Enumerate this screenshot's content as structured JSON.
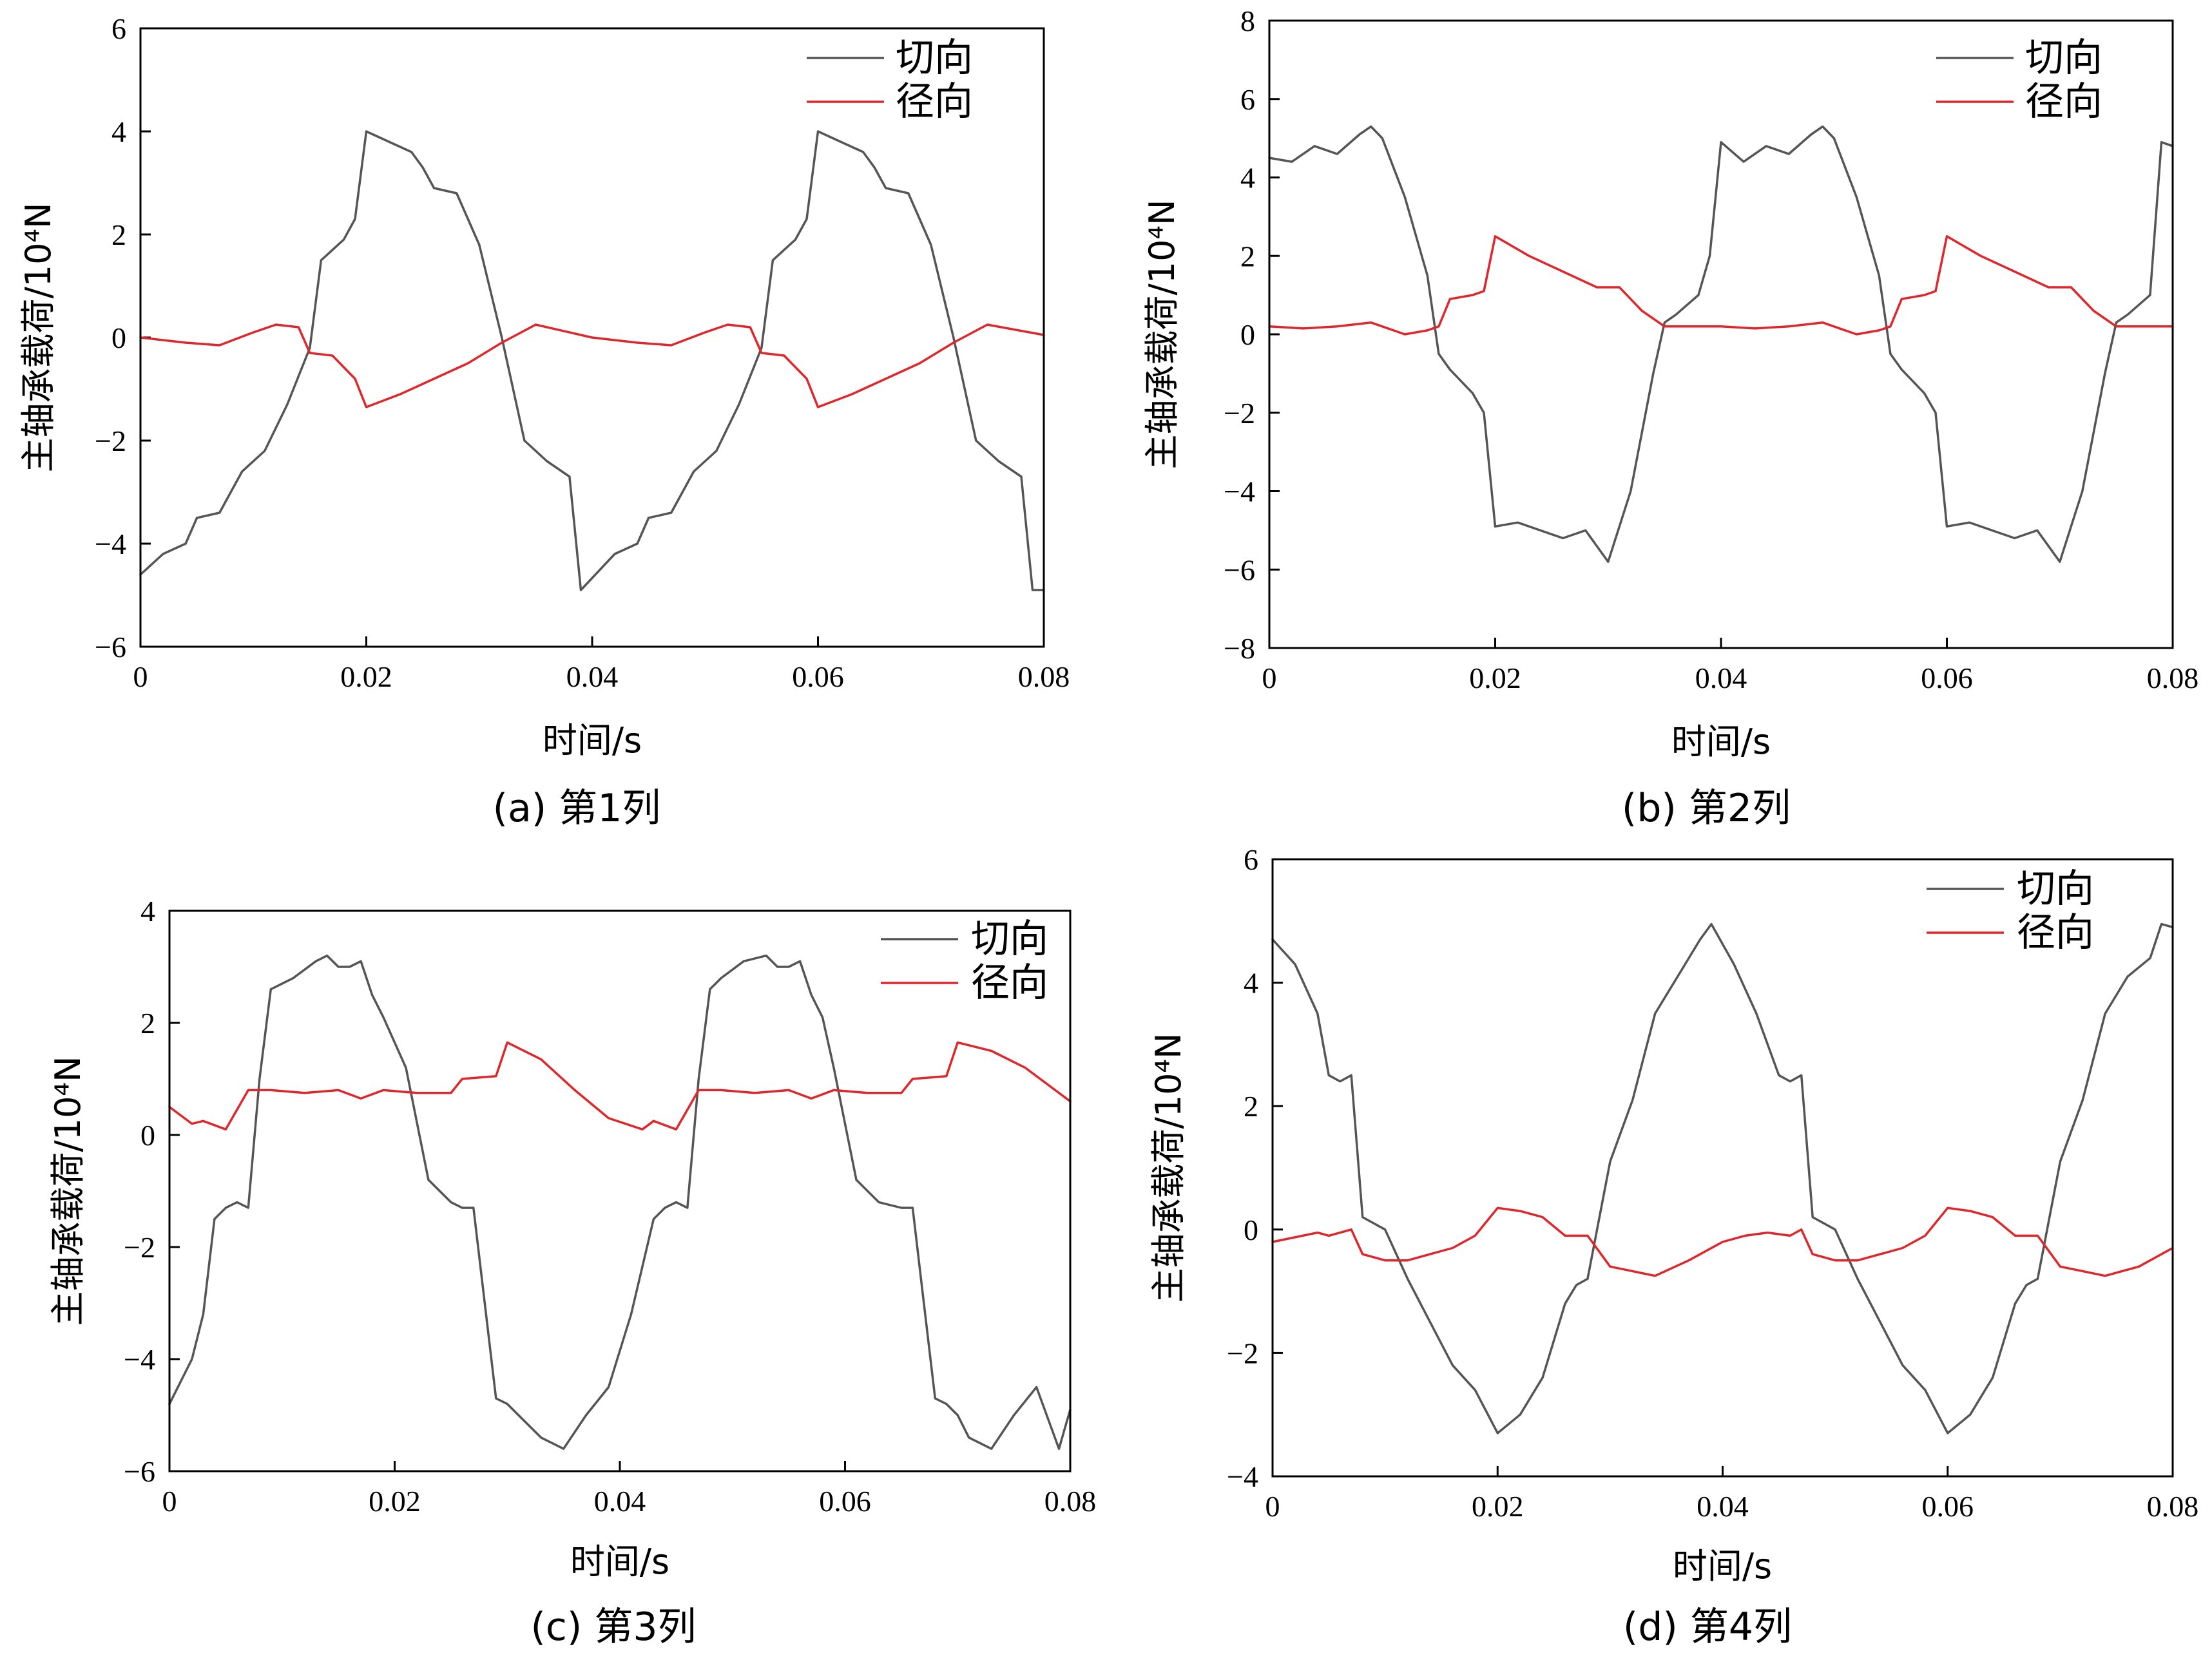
{
  "colors": {
    "tangential": "#555555",
    "radial": "#e0262b",
    "axes": "#000000"
  },
  "chart_data": [
    {
      "type": "line",
      "caption": "(a)  第1列",
      "xlabel": "时间/s",
      "ylabel": "主轴承载荷/10⁴N",
      "xlim": [
        0,
        0.08
      ],
      "ylim": [
        -6,
        6
      ],
      "xticks": [
        0,
        0.02,
        0.04,
        0.06,
        0.08
      ],
      "xtick_labels": [
        "0",
        "0.02",
        "0.04",
        "0.06",
        "0.08"
      ],
      "yticks": [
        -6,
        -4,
        -2,
        0,
        2,
        4,
        6
      ],
      "ytick_labels": [
        "−6",
        "−4",
        "−2",
        "0",
        "2",
        "4",
        "6"
      ],
      "legend_position": "top-right",
      "series": [
        {
          "name": "切向",
          "color": "#555555",
          "x": [
            0,
            0.002,
            0.004,
            0.005,
            0.007,
            0.009,
            0.011,
            0.013,
            0.015,
            0.016,
            0.018,
            0.019,
            0.02,
            0.022,
            0.024,
            0.025,
            0.026,
            0.028,
            0.03,
            0.032,
            0.034,
            0.036,
            0.038,
            0.039,
            0.042,
            0.044,
            0.045,
            0.047,
            0.049,
            0.051,
            0.053,
            0.055,
            0.056,
            0.058,
            0.059,
            0.06,
            0.062,
            0.064,
            0.065,
            0.066,
            0.068,
            0.07,
            0.072,
            0.074,
            0.076,
            0.078,
            0.079,
            0.08
          ],
          "y": [
            -4.6,
            -4.2,
            -4.0,
            -3.5,
            -3.4,
            -2.6,
            -2.2,
            -1.3,
            -0.2,
            1.5,
            1.9,
            2.3,
            4.0,
            3.8,
            3.6,
            3.3,
            2.9,
            2.8,
            1.8,
            0.0,
            -2.0,
            -2.4,
            -2.7,
            -4.9,
            -4.2,
            -4.0,
            -3.5,
            -3.4,
            -2.6,
            -2.2,
            -1.3,
            -0.2,
            1.5,
            1.9,
            2.3,
            4.0,
            3.8,
            3.6,
            3.3,
            2.9,
            2.8,
            1.8,
            0.0,
            -2.0,
            -2.4,
            -2.7,
            -4.9,
            -4.9
          ]
        },
        {
          "name": "径向",
          "color": "#e0262b",
          "x": [
            0,
            0.004,
            0.007,
            0.01,
            0.012,
            0.014,
            0.015,
            0.017,
            0.019,
            0.02,
            0.023,
            0.026,
            0.029,
            0.032,
            0.035,
            0.04,
            0.044,
            0.047,
            0.05,
            0.052,
            0.054,
            0.055,
            0.057,
            0.059,
            0.06,
            0.063,
            0.066,
            0.069,
            0.072,
            0.075,
            0.08
          ],
          "y": [
            0.0,
            -0.1,
            -0.15,
            0.1,
            0.25,
            0.2,
            -0.3,
            -0.35,
            -0.8,
            -1.35,
            -1.1,
            -0.8,
            -0.5,
            -0.1,
            0.25,
            0.0,
            -0.1,
            -0.15,
            0.1,
            0.25,
            0.2,
            -0.3,
            -0.35,
            -0.8,
            -1.35,
            -1.1,
            -0.8,
            -0.5,
            -0.1,
            0.25,
            0.05
          ]
        }
      ]
    },
    {
      "type": "line",
      "caption": "(b)  第2列",
      "xlabel": "时间/s",
      "ylabel": "主轴承载荷/10⁴N",
      "xlim": [
        0,
        0.08
      ],
      "ylim": [
        -8,
        8
      ],
      "xticks": [
        0,
        0.02,
        0.04,
        0.06,
        0.08
      ],
      "xtick_labels": [
        "0",
        "0.02",
        "0.04",
        "0.06",
        "0.08"
      ],
      "yticks": [
        -8,
        -6,
        -4,
        -2,
        0,
        2,
        4,
        6,
        8
      ],
      "ytick_labels": [
        "−8",
        "−6",
        "−4",
        "−2",
        "0",
        "2",
        "4",
        "6",
        "8"
      ],
      "legend_position": "top-right",
      "series": [
        {
          "name": "切向",
          "color": "#555555",
          "x": [
            0,
            0.002,
            0.004,
            0.006,
            0.008,
            0.009,
            0.01,
            0.012,
            0.014,
            0.015,
            0.016,
            0.018,
            0.019,
            0.02,
            0.022,
            0.024,
            0.026,
            0.028,
            0.03,
            0.032,
            0.034,
            0.035,
            0.036,
            0.038,
            0.039,
            0.04,
            0.042,
            0.044,
            0.046,
            0.048,
            0.049,
            0.05,
            0.052,
            0.054,
            0.055,
            0.056,
            0.058,
            0.059,
            0.06,
            0.062,
            0.064,
            0.066,
            0.068,
            0.07,
            0.072,
            0.074,
            0.075,
            0.076,
            0.078,
            0.079,
            0.08
          ],
          "y": [
            4.5,
            4.4,
            4.8,
            4.6,
            5.1,
            5.3,
            5.0,
            3.5,
            1.5,
            -0.5,
            -0.9,
            -1.5,
            -2.0,
            -4.9,
            -4.8,
            -5.0,
            -5.2,
            -5.0,
            -5.8,
            -4.0,
            -1.0,
            0.3,
            0.5,
            1.0,
            2.0,
            4.9,
            4.4,
            4.8,
            4.6,
            5.1,
            5.3,
            5.0,
            3.5,
            1.5,
            -0.5,
            -0.9,
            -1.5,
            -2.0,
            -4.9,
            -4.8,
            -5.0,
            -5.2,
            -5.0,
            -5.8,
            -4.0,
            -1.0,
            0.3,
            0.5,
            1.0,
            4.9,
            4.8
          ]
        },
        {
          "name": "径向",
          "color": "#e0262b",
          "x": [
            0,
            0.003,
            0.006,
            0.009,
            0.01,
            0.012,
            0.014,
            0.015,
            0.016,
            0.018,
            0.019,
            0.02,
            0.023,
            0.026,
            0.029,
            0.031,
            0.033,
            0.035,
            0.04,
            0.043,
            0.046,
            0.049,
            0.05,
            0.052,
            0.054,
            0.055,
            0.056,
            0.058,
            0.059,
            0.06,
            0.063,
            0.066,
            0.069,
            0.071,
            0.073,
            0.075,
            0.08
          ],
          "y": [
            0.2,
            0.15,
            0.2,
            0.3,
            0.2,
            0.0,
            0.1,
            0.2,
            0.9,
            1.0,
            1.1,
            2.5,
            2.0,
            1.6,
            1.2,
            1.2,
            0.6,
            0.2,
            0.2,
            0.15,
            0.2,
            0.3,
            0.2,
            0.0,
            0.1,
            0.2,
            0.9,
            1.0,
            1.1,
            2.5,
            2.0,
            1.6,
            1.2,
            1.2,
            0.6,
            0.2,
            0.2
          ]
        }
      ]
    },
    {
      "type": "line",
      "caption": "(c)  第3列",
      "xlabel": "时间/s",
      "ylabel": "主轴承载荷/10⁴N",
      "xlim": [
        0,
        0.08
      ],
      "ylim": [
        -6,
        4
      ],
      "xticks": [
        0,
        0.02,
        0.04,
        0.06,
        0.08
      ],
      "xtick_labels": [
        "0",
        "0.02",
        "0.04",
        "0.06",
        "0.08"
      ],
      "yticks": [
        -6,
        -4,
        -2,
        0,
        2,
        4
      ],
      "ytick_labels": [
        "−6",
        "−4",
        "−2",
        "0",
        "2",
        "4"
      ],
      "legend_position": "top-right",
      "series": [
        {
          "name": "切向",
          "color": "#555555",
          "x": [
            0,
            0.002,
            0.003,
            0.004,
            0.005,
            0.006,
            0.007,
            0.008,
            0.009,
            0.011,
            0.013,
            0.014,
            0.015,
            0.016,
            0.017,
            0.018,
            0.019,
            0.021,
            0.023,
            0.025,
            0.026,
            0.027,
            0.028,
            0.029,
            0.03,
            0.031,
            0.033,
            0.035,
            0.037,
            0.039,
            0.041,
            0.043,
            0.044,
            0.045,
            0.046,
            0.047,
            0.048,
            0.049,
            0.051,
            0.053,
            0.054,
            0.055,
            0.056,
            0.057,
            0.058,
            0.059,
            0.061,
            0.063,
            0.065,
            0.066,
            0.067,
            0.068,
            0.069,
            0.07,
            0.071,
            0.073,
            0.075,
            0.077,
            0.079,
            0.08
          ],
          "y": [
            -4.8,
            -4.0,
            -3.2,
            -1.5,
            -1.3,
            -1.2,
            -1.3,
            1.0,
            2.6,
            2.8,
            3.1,
            3.2,
            3.0,
            3.0,
            3.1,
            2.5,
            2.1,
            1.2,
            -0.8,
            -1.2,
            -1.3,
            -1.3,
            -3.0,
            -4.7,
            -4.8,
            -5.0,
            -5.4,
            -5.6,
            -5.0,
            -4.5,
            -3.2,
            -1.5,
            -1.3,
            -1.2,
            -1.3,
            1.0,
            2.6,
            2.8,
            3.1,
            3.2,
            3.0,
            3.0,
            3.1,
            2.5,
            2.1,
            1.2,
            -0.8,
            -1.2,
            -1.3,
            -1.3,
            -3.0,
            -4.7,
            -4.8,
            -5.0,
            -5.4,
            -5.6,
            -5.0,
            -4.5,
            -5.6,
            -4.9
          ]
        },
        {
          "name": "径向",
          "color": "#e0262b",
          "x": [
            0,
            0.002,
            0.003,
            0.005,
            0.007,
            0.009,
            0.012,
            0.015,
            0.017,
            0.019,
            0.022,
            0.025,
            0.026,
            0.029,
            0.03,
            0.033,
            0.036,
            0.039,
            0.042,
            0.043,
            0.045,
            0.047,
            0.049,
            0.052,
            0.055,
            0.057,
            0.059,
            0.062,
            0.065,
            0.066,
            0.069,
            0.07,
            0.073,
            0.076,
            0.08
          ],
          "y": [
            0.5,
            0.2,
            0.25,
            0.1,
            0.8,
            0.8,
            0.75,
            0.8,
            0.65,
            0.8,
            0.75,
            0.75,
            1.0,
            1.05,
            1.65,
            1.35,
            0.8,
            0.3,
            0.1,
            0.25,
            0.1,
            0.8,
            0.8,
            0.75,
            0.8,
            0.65,
            0.8,
            0.75,
            0.75,
            1.0,
            1.05,
            1.65,
            1.5,
            1.2,
            0.6
          ]
        }
      ]
    },
    {
      "type": "line",
      "caption": "(d)  第4列",
      "xlabel": "时间/s",
      "ylabel": "主轴承载荷/10⁴N",
      "xlim": [
        0,
        0.08
      ],
      "ylim": [
        -4,
        6
      ],
      "xticks": [
        0,
        0.02,
        0.04,
        0.06,
        0.08
      ],
      "xtick_labels": [
        "0",
        "0.02",
        "0.04",
        "0.06",
        "0.08"
      ],
      "yticks": [
        -4,
        -2,
        0,
        2,
        4,
        6
      ],
      "ytick_labels": [
        "−4",
        "−2",
        "0",
        "2",
        "4",
        "6"
      ],
      "legend_position": "top-right",
      "series": [
        {
          "name": "切向",
          "color": "#555555",
          "x": [
            0,
            0.002,
            0.004,
            0.005,
            0.006,
            0.007,
            0.008,
            0.01,
            0.012,
            0.014,
            0.016,
            0.018,
            0.02,
            0.022,
            0.024,
            0.026,
            0.027,
            0.028,
            0.03,
            0.032,
            0.034,
            0.036,
            0.038,
            0.039,
            0.041,
            0.043,
            0.045,
            0.046,
            0.047,
            0.048,
            0.05,
            0.052,
            0.054,
            0.056,
            0.058,
            0.06,
            0.062,
            0.064,
            0.066,
            0.067,
            0.068,
            0.07,
            0.072,
            0.074,
            0.076,
            0.078,
            0.079,
            0.08
          ],
          "y": [
            4.7,
            4.3,
            3.5,
            2.5,
            2.4,
            2.5,
            0.2,
            0.0,
            -0.8,
            -1.5,
            -2.2,
            -2.6,
            -3.3,
            -3.0,
            -2.4,
            -1.2,
            -0.9,
            -0.8,
            1.1,
            2.1,
            3.5,
            4.1,
            4.7,
            4.95,
            4.3,
            3.5,
            2.5,
            2.4,
            2.5,
            0.2,
            0.0,
            -0.8,
            -1.5,
            -2.2,
            -2.6,
            -3.3,
            -3.0,
            -2.4,
            -1.2,
            -0.9,
            -0.8,
            1.1,
            2.1,
            3.5,
            4.1,
            4.4,
            4.95,
            4.9
          ]
        },
        {
          "name": "径向",
          "color": "#e0262b",
          "x": [
            0,
            0.004,
            0.005,
            0.007,
            0.008,
            0.01,
            0.012,
            0.014,
            0.016,
            0.018,
            0.02,
            0.022,
            0.024,
            0.026,
            0.028,
            0.03,
            0.034,
            0.037,
            0.04,
            0.042,
            0.044,
            0.046,
            0.047,
            0.048,
            0.05,
            0.052,
            0.054,
            0.056,
            0.058,
            0.06,
            0.062,
            0.064,
            0.066,
            0.068,
            0.07,
            0.074,
            0.077,
            0.08
          ],
          "y": [
            -0.2,
            -0.05,
            -0.1,
            0.0,
            -0.4,
            -0.5,
            -0.5,
            -0.4,
            -0.3,
            -0.1,
            0.35,
            0.3,
            0.2,
            -0.1,
            -0.1,
            -0.6,
            -0.75,
            -0.5,
            -0.2,
            -0.1,
            -0.05,
            -0.1,
            0.0,
            -0.4,
            -0.5,
            -0.5,
            -0.4,
            -0.3,
            -0.1,
            0.35,
            0.3,
            0.2,
            -0.1,
            -0.1,
            -0.6,
            -0.75,
            -0.6,
            -0.3
          ]
        }
      ]
    }
  ]
}
